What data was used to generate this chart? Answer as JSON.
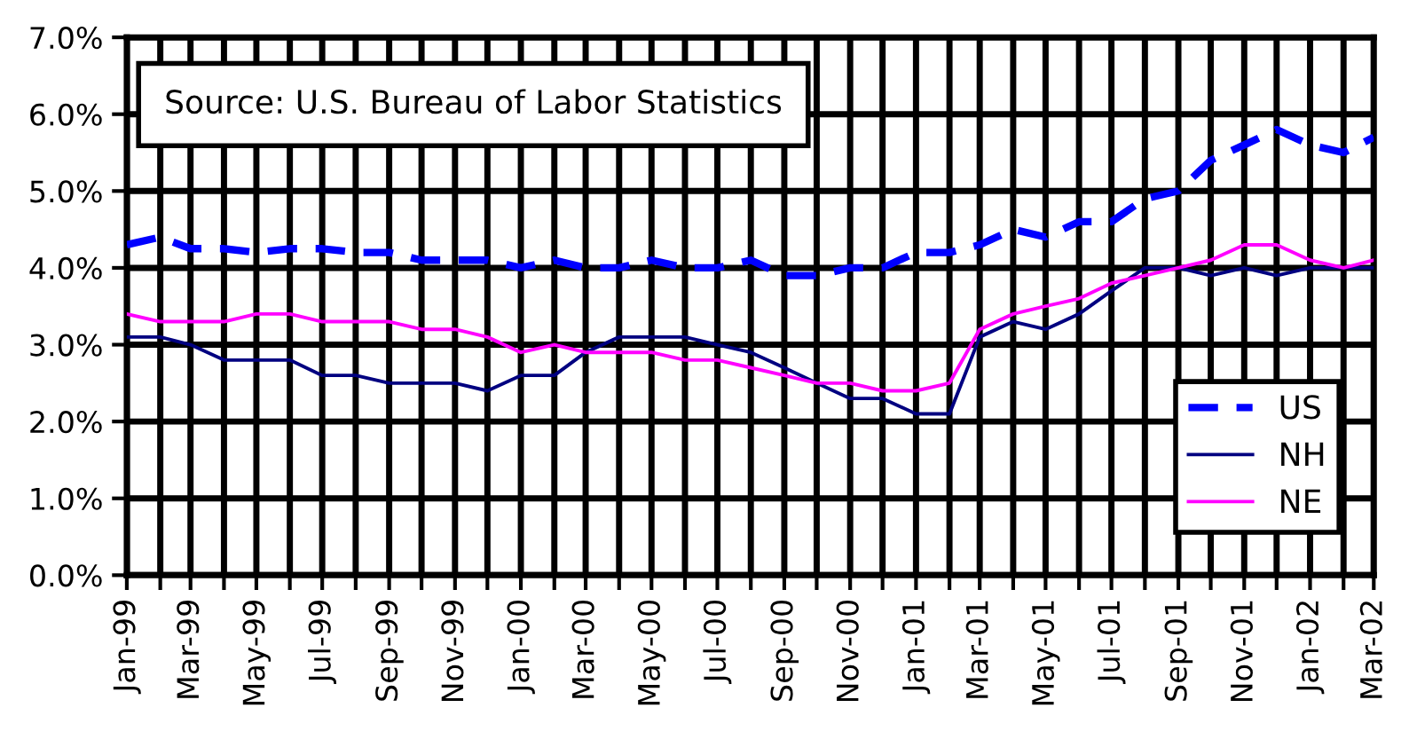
{
  "chart_data": {
    "type": "line",
    "x": [
      "1999-01",
      "1999-02",
      "1999-03",
      "1999-04",
      "1999-05",
      "1999-06",
      "1999-07",
      "1999-08",
      "1999-09",
      "1999-10",
      "1999-11",
      "1999-12",
      "2000-01",
      "2000-02",
      "2000-03",
      "2000-04",
      "2000-05",
      "2000-06",
      "2000-07",
      "2000-08",
      "2000-09",
      "2000-10",
      "2000-11",
      "2000-12",
      "2001-01",
      "2001-02",
      "2001-03",
      "2001-04",
      "2001-05",
      "2001-06",
      "2001-07",
      "2001-08",
      "2001-09",
      "2001-10",
      "2001-11",
      "2001-12",
      "2002-01",
      "2002-02",
      "2002-03"
    ],
    "series": [
      {
        "name": "US",
        "color": "#0000ff",
        "line_style": "dashed",
        "values": [
          4.3,
          4.4,
          4.25,
          4.25,
          4.2,
          4.25,
          4.25,
          4.2,
          4.2,
          4.1,
          4.1,
          4.1,
          4.0,
          4.1,
          4.0,
          4.0,
          4.1,
          4.0,
          4.0,
          4.1,
          3.9,
          3.9,
          4.0,
          4.0,
          4.2,
          4.2,
          4.3,
          4.5,
          4.4,
          4.6,
          4.6,
          4.9,
          5.0,
          5.4,
          5.6,
          5.8,
          5.6,
          5.5,
          5.7
        ]
      },
      {
        "name": "NH",
        "color": "#000080",
        "line_style": "solid",
        "values": [
          3.1,
          3.1,
          3.0,
          2.8,
          2.8,
          2.8,
          2.6,
          2.6,
          2.5,
          2.5,
          2.5,
          2.4,
          2.6,
          2.6,
          2.9,
          3.1,
          3.1,
          3.1,
          3.0,
          2.9,
          2.7,
          2.5,
          2.3,
          2.3,
          2.1,
          2.1,
          3.1,
          3.3,
          3.2,
          3.4,
          3.7,
          4.0,
          4.0,
          3.9,
          4.0,
          3.9,
          4.0,
          4.0,
          4.0
        ]
      },
      {
        "name": "NE",
        "color": "#ff00ff",
        "line_style": "solid",
        "values": [
          3.4,
          3.3,
          3.3,
          3.3,
          3.4,
          3.4,
          3.3,
          3.3,
          3.3,
          3.2,
          3.2,
          3.1,
          2.9,
          3.0,
          2.9,
          2.9,
          2.9,
          2.8,
          2.8,
          2.7,
          2.6,
          2.5,
          2.5,
          2.4,
          2.4,
          2.5,
          3.2,
          3.4,
          3.5,
          3.6,
          3.8,
          3.9,
          4.0,
          4.1,
          4.3,
          4.3,
          4.1,
          4.0,
          4.1
        ]
      }
    ],
    "xlim": [
      "1999-01",
      "2002-03"
    ],
    "xticks": [
      {
        "value": "1999-01",
        "label": "Jan-99"
      },
      {
        "value": "1999-02",
        "label": null
      },
      {
        "value": "1999-03",
        "label": "Mar-99"
      },
      {
        "value": "1999-04",
        "label": null
      },
      {
        "value": "1999-05",
        "label": "May-99"
      },
      {
        "value": "1999-06",
        "label": null
      },
      {
        "value": "1999-07",
        "label": "Jul-99"
      },
      {
        "value": "1999-08",
        "label": null
      },
      {
        "value": "1999-09",
        "label": "Sep-99"
      },
      {
        "value": "1999-10",
        "label": null
      },
      {
        "value": "1999-11",
        "label": "Nov-99"
      },
      {
        "value": "1999-12",
        "label": null
      },
      {
        "value": "2000-01",
        "label": "Jan-00"
      },
      {
        "value": "2000-02",
        "label": null
      },
      {
        "value": "2000-03",
        "label": "Mar-00"
      },
      {
        "value": "2000-04",
        "label": null
      },
      {
        "value": "2000-05",
        "label": "May-00"
      },
      {
        "value": "2000-06",
        "label": null
      },
      {
        "value": "2000-07",
        "label": "Jul-00"
      },
      {
        "value": "2000-08",
        "label": null
      },
      {
        "value": "2000-09",
        "label": "Sep-00"
      },
      {
        "value": "2000-10",
        "label": null
      },
      {
        "value": "2000-11",
        "label": "Nov-00"
      },
      {
        "value": "2000-12",
        "label": null
      },
      {
        "value": "2001-01",
        "label": "Jan-01"
      },
      {
        "value": "2001-02",
        "label": null
      },
      {
        "value": "2001-03",
        "label": "Mar-01"
      },
      {
        "value": "2001-04",
        "label": null
      },
      {
        "value": "2001-05",
        "label": "May-01"
      },
      {
        "value": "2001-06",
        "label": null
      },
      {
        "value": "2001-07",
        "label": "Jul-01"
      },
      {
        "value": "2001-08",
        "label": null
      },
      {
        "value": "2001-09",
        "label": "Sep-01"
      },
      {
        "value": "2001-10",
        "label": null
      },
      {
        "value": "2001-11",
        "label": "Nov-01"
      },
      {
        "value": "2001-12",
        "label": null
      },
      {
        "value": "2002-01",
        "label": "Jan-02"
      },
      {
        "value": "2002-02",
        "label": null
      },
      {
        "value": "2002-03",
        "label": "Mar-02"
      }
    ],
    "ylim": [
      0,
      7
    ],
    "yticks": [
      {
        "value": 0,
        "label": "0.0%"
      },
      {
        "value": 1,
        "label": "1.0%"
      },
      {
        "value": 2,
        "label": "2.0%"
      },
      {
        "value": 3,
        "label": "3.0%"
      },
      {
        "value": 4,
        "label": "4.0%"
      },
      {
        "value": 5,
        "label": "5.0%"
      },
      {
        "value": 6,
        "label": "6.0%"
      },
      {
        "value": 7,
        "label": "7.0%"
      }
    ],
    "annotations": [
      "Source: U.S. Bureau of Labor Statistics"
    ],
    "grid": true,
    "legend": "bottom right",
    "marker": "none"
  }
}
